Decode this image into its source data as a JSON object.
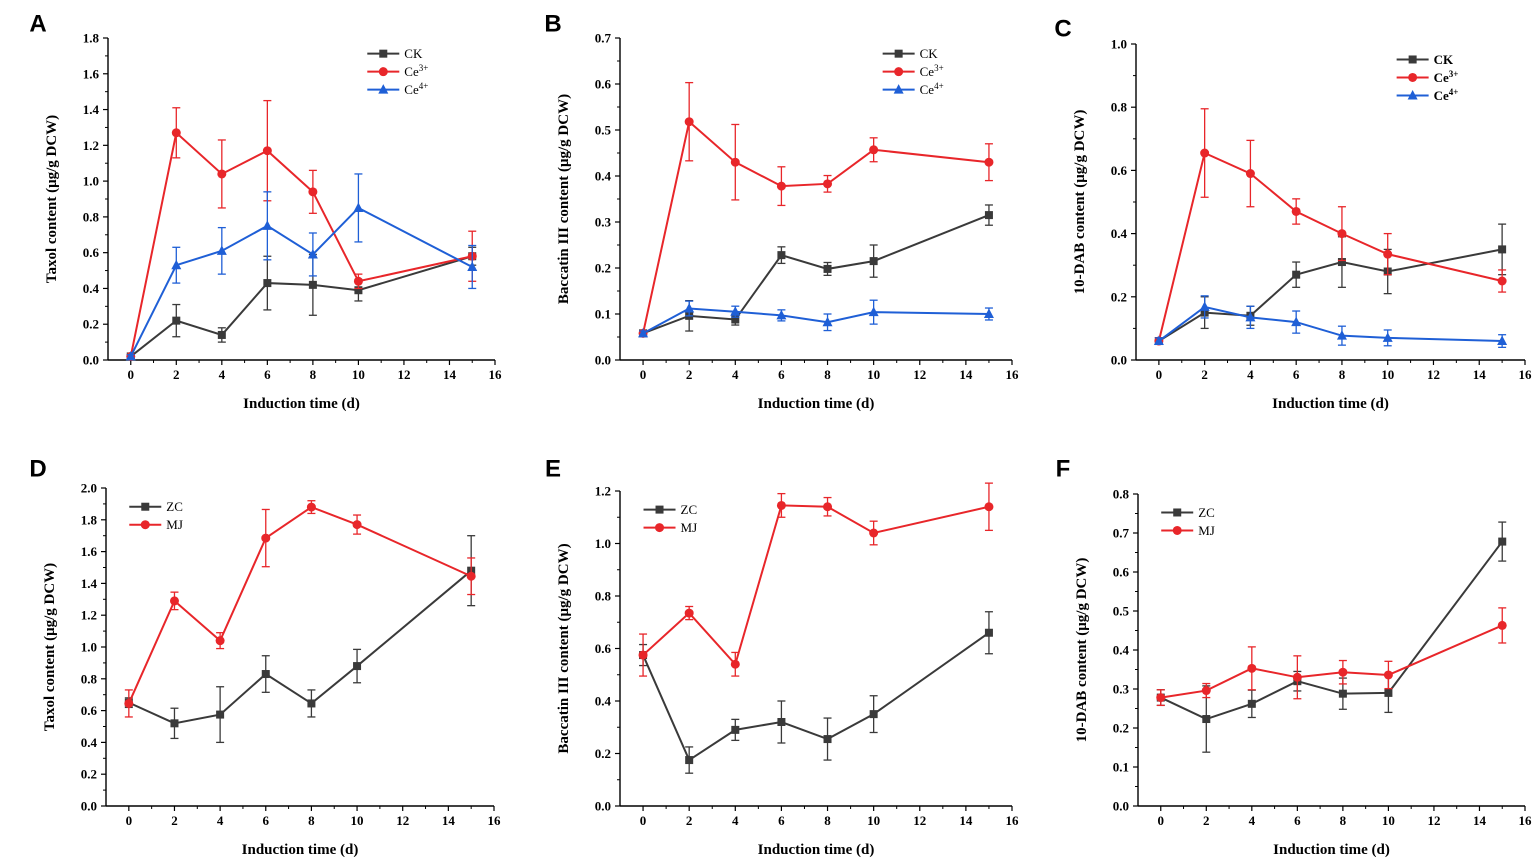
{
  "colors": {
    "CK": "#3a3a3a",
    "Ce3": "#e8262a",
    "Ce4": "#1f5fd6",
    "ZC": "#3a3a3a",
    "MJ": "#e8262a",
    "axis": "#000000"
  },
  "chart_data": [
    {
      "panel": "A",
      "type": "line",
      "xlabel": "Induction time (d)",
      "ylabel": "Taxol content (μg/g DCW)",
      "xlim": [
        -1,
        16
      ],
      "ylim": [
        0,
        1.8
      ],
      "xticks": [
        "0",
        "2",
        "4",
        "6",
        "8",
        "10",
        "12",
        "14",
        "16"
      ],
      "yticks": [
        "0.0",
        "0.2",
        "0.4",
        "0.6",
        "0.8",
        "1.0",
        "1.2",
        "1.4",
        "1.6",
        "1.8"
      ],
      "x": [
        0,
        2,
        4,
        6,
        8,
        10,
        15
      ],
      "legend_position": "top-right",
      "series": [
        {
          "name": "CK",
          "sup": "",
          "color_key": "CK",
          "marker": "square",
          "values": [
            0.02,
            0.22,
            0.14,
            0.43,
            0.42,
            0.39,
            0.58
          ],
          "errors": [
            0.01,
            0.09,
            0.04,
            0.15,
            0.17,
            0.06,
            0.05
          ]
        },
        {
          "name": "Ce",
          "sup": "3+",
          "color_key": "Ce3",
          "marker": "circle",
          "values": [
            0.02,
            1.27,
            1.04,
            1.17,
            0.94,
            0.44,
            0.58
          ],
          "errors": [
            0.01,
            0.14,
            0.19,
            0.28,
            0.12,
            0.04,
            0.14
          ]
        },
        {
          "name": "Ce",
          "sup": "4+",
          "color_key": "Ce4",
          "marker": "triangle",
          "values": [
            0.02,
            0.53,
            0.61,
            0.75,
            0.59,
            0.85,
            0.52
          ],
          "errors": [
            0.01,
            0.1,
            0.13,
            0.19,
            0.12,
            0.19,
            0.12
          ]
        }
      ]
    },
    {
      "panel": "B",
      "type": "line",
      "xlabel": "Induction time (d)",
      "ylabel": "Baccatin III content (μg/g DCW)",
      "xlim": [
        -1,
        16
      ],
      "ylim": [
        0,
        0.7
      ],
      "xticks": [
        "0",
        "2",
        "4",
        "6",
        "8",
        "10",
        "12",
        "14",
        "16"
      ],
      "yticks": [
        "0.0",
        "0.1",
        "0.2",
        "0.3",
        "0.4",
        "0.5",
        "0.6",
        "0.7"
      ],
      "x": [
        0,
        2,
        4,
        6,
        8,
        10,
        15
      ],
      "legend_position": "top-right",
      "series": [
        {
          "name": "CK",
          "sup": "",
          "color_key": "CK",
          "marker": "square",
          "values": [
            0.058,
            0.096,
            0.088,
            0.228,
            0.198,
            0.215,
            0.315
          ],
          "errors": [
            0.005,
            0.033,
            0.012,
            0.018,
            0.014,
            0.035,
            0.022
          ]
        },
        {
          "name": "Ce",
          "sup": "3+",
          "color_key": "Ce3",
          "marker": "circle",
          "values": [
            0.058,
            0.518,
            0.43,
            0.378,
            0.383,
            0.457,
            0.43
          ],
          "errors": [
            0.005,
            0.085,
            0.082,
            0.042,
            0.018,
            0.026,
            0.04
          ]
        },
        {
          "name": "Ce",
          "sup": "4+",
          "color_key": "Ce4",
          "marker": "triangle",
          "values": [
            0.058,
            0.112,
            0.105,
            0.097,
            0.082,
            0.104,
            0.1
          ],
          "errors": [
            0.005,
            0.016,
            0.012,
            0.012,
            0.018,
            0.026,
            0.013
          ]
        }
      ]
    },
    {
      "panel": "C",
      "type": "line",
      "xlabel": "Induction time (d)",
      "ylabel": "10-DAB content (μg/g DCW)",
      "xlim": [
        -1,
        16
      ],
      "ylim": [
        0,
        1.0
      ],
      "xticks": [
        "0",
        "2",
        "4",
        "6",
        "8",
        "10",
        "12",
        "14",
        "16"
      ],
      "yticks": [
        "0.0",
        "0.2",
        "0.4",
        "0.6",
        "0.8",
        "1.0"
      ],
      "x": [
        0,
        2,
        4,
        6,
        8,
        10,
        15
      ],
      "legend_position": "top-right",
      "series": [
        {
          "name": "CK",
          "sup": "",
          "color_key": "CK",
          "marker": "square",
          "values": [
            0.06,
            0.15,
            0.14,
            0.27,
            0.31,
            0.28,
            0.35
          ],
          "errors": [
            0.01,
            0.05,
            0.03,
            0.04,
            0.08,
            0.07,
            0.08
          ]
        },
        {
          "name": "Ce",
          "sup": "3+",
          "color_key": "Ce3",
          "marker": "circle",
          "values": [
            0.06,
            0.655,
            0.59,
            0.47,
            0.4,
            0.335,
            0.25
          ],
          "errors": [
            0.01,
            0.14,
            0.105,
            0.04,
            0.085,
            0.065,
            0.035
          ]
        },
        {
          "name": "Ce",
          "sup": "4+",
          "color_key": "Ce4",
          "marker": "triangle",
          "values": [
            0.06,
            0.168,
            0.135,
            0.12,
            0.077,
            0.07,
            0.06
          ],
          "errors": [
            0.01,
            0.035,
            0.035,
            0.035,
            0.03,
            0.025,
            0.02
          ]
        }
      ]
    },
    {
      "panel": "D",
      "type": "line",
      "xlabel": "Induction time (d)",
      "ylabel": "Taxol content (μg/g DCW)",
      "xlim": [
        -1,
        16
      ],
      "ylim": [
        0,
        2.0
      ],
      "xticks": [
        "0",
        "2",
        "4",
        "6",
        "8",
        "10",
        "12",
        "14",
        "16"
      ],
      "yticks": [
        "0.0",
        "0.2",
        "0.4",
        "0.6",
        "0.8",
        "1.0",
        "1.2",
        "1.4",
        "1.6",
        "1.8",
        "2.0"
      ],
      "x": [
        0,
        2,
        4,
        6,
        8,
        10,
        15
      ],
      "legend_position": "top-left",
      "series": [
        {
          "name": "ZC",
          "sup": "",
          "color_key": "ZC",
          "marker": "square",
          "values": [
            0.65,
            0.52,
            0.575,
            0.83,
            0.645,
            0.88,
            1.48
          ],
          "errors": [
            0.03,
            0.095,
            0.175,
            0.115,
            0.085,
            0.105,
            0.22
          ]
        },
        {
          "name": "MJ",
          "sup": "",
          "color_key": "MJ",
          "marker": "circle",
          "values": [
            0.645,
            1.29,
            1.04,
            1.685,
            1.88,
            1.77,
            1.445
          ],
          "errors": [
            0.085,
            0.055,
            0.05,
            0.18,
            0.04,
            0.06,
            0.115
          ]
        }
      ]
    },
    {
      "panel": "E",
      "type": "line",
      "xlabel": "Induction time (d)",
      "ylabel": "Baccatin III content (μg/g DCW)",
      "xlim": [
        -1,
        16
      ],
      "ylim": [
        0,
        1.2
      ],
      "xticks": [
        "0",
        "2",
        "4",
        "6",
        "8",
        "10",
        "12",
        "14",
        "16"
      ],
      "yticks": [
        "0.0",
        "0.2",
        "0.4",
        "0.6",
        "0.8",
        "1.0",
        "1.2"
      ],
      "x": [
        0,
        2,
        4,
        6,
        8,
        10,
        15
      ],
      "legend_position": "top-left",
      "series": [
        {
          "name": "ZC",
          "sup": "",
          "color_key": "ZC",
          "marker": "square",
          "values": [
            0.575,
            0.175,
            0.29,
            0.32,
            0.255,
            0.35,
            0.66
          ],
          "errors": [
            0.04,
            0.05,
            0.04,
            0.08,
            0.08,
            0.07,
            0.08
          ]
        },
        {
          "name": "MJ",
          "sup": "",
          "color_key": "MJ",
          "marker": "circle",
          "values": [
            0.575,
            0.735,
            0.54,
            1.145,
            1.14,
            1.04,
            1.14
          ],
          "errors": [
            0.08,
            0.025,
            0.045,
            0.045,
            0.035,
            0.045,
            0.09
          ]
        }
      ]
    },
    {
      "panel": "F",
      "type": "line",
      "xlabel": "Induction time (d)",
      "ylabel": "10-DAB content (μg/g DCW)",
      "xlim": [
        -1,
        16
      ],
      "ylim": [
        0,
        0.8
      ],
      "xticks": [
        "0",
        "2",
        "4",
        "6",
        "8",
        "10",
        "12",
        "14",
        "16"
      ],
      "yticks": [
        "0.0",
        "0.1",
        "0.2",
        "0.3",
        "0.4",
        "0.5",
        "0.6",
        "0.7",
        "0.8"
      ],
      "x": [
        0,
        2,
        4,
        6,
        8,
        10,
        15
      ],
      "legend_position": "top-left",
      "series": [
        {
          "name": "ZC",
          "sup": "",
          "color_key": "ZC",
          "marker": "square",
          "values": [
            0.278,
            0.223,
            0.262,
            0.32,
            0.288,
            0.29,
            0.678
          ],
          "errors": [
            0.02,
            0.085,
            0.035,
            0.025,
            0.04,
            0.05,
            0.05
          ]
        },
        {
          "name": "MJ",
          "sup": "",
          "color_key": "MJ",
          "marker": "circle",
          "values": [
            0.278,
            0.296,
            0.353,
            0.33,
            0.343,
            0.336,
            0.463
          ],
          "errors": [
            0.02,
            0.018,
            0.055,
            0.055,
            0.03,
            0.035,
            0.045
          ]
        }
      ]
    }
  ]
}
